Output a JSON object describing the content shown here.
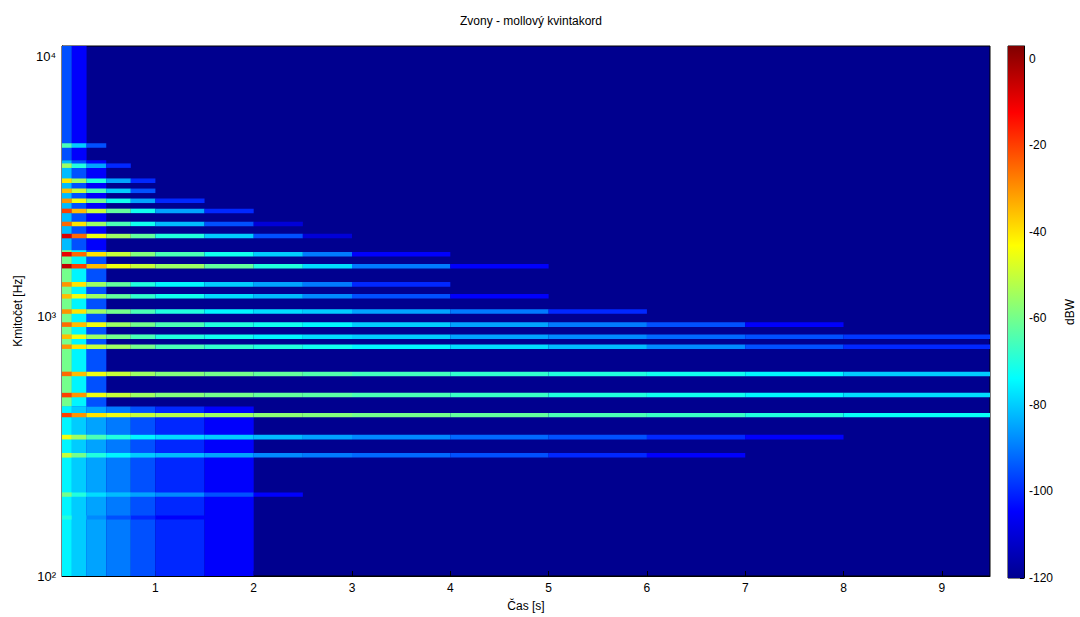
{
  "chart_data": {
    "type": "heatmap",
    "title": "Zvony - mollový kvintakord",
    "x_label": "Čas [s]",
    "y_label": "Kmitočet [Hz]",
    "log": "y",
    "grid": false,
    "xlim": [
      0.05,
      9.49
    ],
    "xticks": [
      1,
      2,
      3,
      4,
      5,
      6,
      7,
      8,
      9
    ],
    "ylim": [
      100,
      11025
    ],
    "yticks": [
      {
        "value": 100,
        "label": "10²"
      },
      {
        "value": 1000,
        "label": "10³"
      },
      {
        "value": 10000,
        "label": "10⁴"
      }
    ],
    "colorbar": {
      "label": "dBW",
      "lim": [
        -120,
        3
      ],
      "ticks": [
        -120,
        -100,
        -80,
        -60,
        -40,
        -20,
        0
      ]
    },
    "time_edges": [
      0.05,
      0.15,
      0.3,
      0.5,
      0.75,
      1,
      1.5,
      2,
      2.5,
      3,
      4,
      5,
      6,
      7,
      8,
      9.49
    ],
    "bands": [
      {
        "f": [
          4000,
          11025
        ],
        "db": [
          -95,
          -105,
          null,
          null,
          null,
          null,
          null,
          null,
          null,
          null,
          null,
          null,
          null,
          null,
          null
        ]
      },
      {
        "f": [
          100,
          4000
        ],
        "db": [
          -82,
          -95,
          -105,
          null,
          null,
          null,
          null,
          null,
          null,
          null,
          null,
          null,
          null,
          null,
          null
        ]
      },
      {
        "f": [
          450,
          1800
        ],
        "db": [
          -60,
          -75,
          -95,
          null,
          null,
          null,
          null,
          null,
          null,
          null,
          null,
          null,
          null,
          null,
          null
        ]
      },
      {
        "f": [
          100,
          450
        ],
        "db": [
          -75,
          -80,
          -85,
          -90,
          -95,
          -100,
          -105,
          null,
          null,
          null,
          null,
          null,
          null,
          null,
          null
        ]
      },
      {
        "f": [
          409,
          425
        ],
        "db": [
          -20,
          -30,
          -40,
          -45,
          -50,
          -52,
          -55,
          -57,
          -58,
          -60,
          -62,
          -65,
          -67,
          -70,
          -73
        ]
      },
      {
        "f": [
          488,
          508
        ],
        "db": [
          -20,
          -30,
          -45,
          -50,
          -55,
          -58,
          -60,
          -62,
          -63,
          -65,
          -67,
          -70,
          -72,
          -75,
          -78
        ]
      },
      {
        "f": [
          589,
          613
        ],
        "db": [
          -25,
          -35,
          -45,
          -50,
          -55,
          -58,
          -60,
          -62,
          -64,
          -66,
          -68,
          -70,
          -72,
          -75,
          -80
        ]
      },
      {
        "f": [
          750,
          780
        ],
        "db": [
          -30,
          -40,
          -50,
          -55,
          -60,
          -65,
          -68,
          -70,
          -72,
          -75,
          -78,
          -82,
          -88,
          -95,
          -100
        ]
      },
      {
        "f": [
          819,
          853
        ],
        "db": [
          -35,
          -45,
          -55,
          -60,
          -65,
          -70,
          -72,
          -75,
          -78,
          -80,
          -85,
          -88,
          -92,
          -95,
          -98
        ]
      },
      {
        "f": [
          912,
          950
        ],
        "db": [
          -25,
          -35,
          -45,
          -55,
          -60,
          -65,
          -70,
          -72,
          -75,
          -80,
          -85,
          -90,
          -95,
          -105,
          null
        ]
      },
      {
        "f": [
          1024,
          1066
        ],
        "db": [
          -30,
          -40,
          -55,
          -60,
          -65,
          -70,
          -75,
          -78,
          -80,
          -85,
          -90,
          -100,
          null,
          null,
          null
        ]
      },
      {
        "f": [
          1172,
          1220
        ],
        "db": [
          -35,
          -45,
          -55,
          -62,
          -68,
          -72,
          -78,
          -82,
          -88,
          -95,
          -105,
          null,
          null,
          null,
          null
        ]
      },
      {
        "f": [
          1303,
          1357
        ],
        "db": [
          -30,
          -40,
          -55,
          -62,
          -70,
          -75,
          -80,
          -85,
          -90,
          -100,
          null,
          null,
          null,
          null,
          null
        ]
      },
      {
        "f": [
          1532,
          1594
        ],
        "db": [
          -5,
          -20,
          -35,
          -45,
          -50,
          -55,
          -62,
          -70,
          -78,
          -90,
          -105,
          null,
          null,
          null,
          null
        ]
      },
      {
        "f": [
          1703,
          1773
        ],
        "db": [
          -10,
          -25,
          -40,
          -50,
          -58,
          -65,
          -72,
          -80,
          -90,
          -105,
          null,
          null,
          null,
          null,
          null
        ]
      },
      {
        "f": [
          2001,
          2083
        ],
        "db": [
          -8,
          -25,
          -45,
          -55,
          -62,
          -70,
          -80,
          -95,
          -110,
          null,
          null,
          null,
          null,
          null,
          null
        ]
      },
      {
        "f": [
          2229,
          2319
        ],
        "db": [
          -25,
          -40,
          -55,
          -65,
          -72,
          -82,
          -95,
          -110,
          null,
          null,
          null,
          null,
          null,
          null,
          null
        ]
      },
      {
        "f": [
          2502,
          2604
        ],
        "db": [
          -20,
          -35,
          -50,
          -62,
          -72,
          -85,
          -100,
          null,
          null,
          null,
          null,
          null,
          null,
          null,
          null
        ]
      },
      {
        "f": [
          2736,
          2848
        ],
        "db": [
          -30,
          -45,
          -60,
          -72,
          -85,
          -100,
          null,
          null,
          null,
          null,
          null,
          null,
          null,
          null,
          null
        ]
      },
      {
        "f": [
          2990,
          3112
        ],
        "db": [
          -35,
          -50,
          -65,
          -80,
          -95,
          null,
          null,
          null,
          null,
          null,
          null,
          null,
          null,
          null,
          null
        ]
      },
      {
        "f": [
          3270,
          3404
        ],
        "db": [
          -40,
          -55,
          -70,
          -85,
          -100,
          null,
          null,
          null,
          null,
          null,
          null,
          null,
          null,
          null,
          null
        ]
      },
      {
        "f": [
          3738,
          3890
        ],
        "db": [
          -55,
          -70,
          -85,
          -100,
          null,
          null,
          null,
          null,
          null,
          null,
          null,
          null,
          null,
          null,
          null
        ]
      },
      {
        "f": [
          4469,
          4651
        ],
        "db": [
          -65,
          -80,
          -95,
          null,
          null,
          null,
          null,
          null,
          null,
          null,
          null,
          null,
          null,
          null,
          null
        ]
      },
      {
        "f": [
          336,
          350
        ],
        "db": [
          -45,
          -55,
          -65,
          -70,
          -75,
          -78,
          -80,
          -82,
          -85,
          -88,
          -92,
          -95,
          -100,
          -105,
          null
        ]
      },
      {
        "f": [
          286,
          298
        ],
        "db": [
          -50,
          -60,
          -70,
          -75,
          -80,
          -82,
          -85,
          -88,
          -90,
          -92,
          -95,
          -100,
          -105,
          null,
          null
        ]
      },
      {
        "f": [
          202,
          210
        ],
        "db": [
          -60,
          -70,
          -78,
          -82,
          -85,
          -88,
          -95,
          -105,
          null,
          null,
          null,
          null,
          null,
          null,
          null
        ]
      },
      {
        "f": [
          165,
          171
        ],
        "db": [
          -70,
          -80,
          -88,
          -95,
          -100,
          -105,
          null,
          null,
          null,
          null,
          null,
          null,
          null,
          null,
          null
        ]
      }
    ]
  }
}
